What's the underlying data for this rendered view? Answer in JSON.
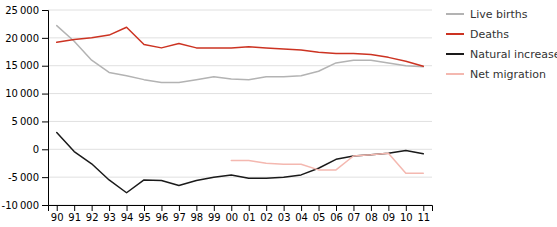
{
  "chart_data": {
    "type": "line",
    "categories": [
      "90",
      "91",
      "92",
      "93",
      "94",
      "95",
      "96",
      "97",
      "98",
      "99",
      "00",
      "01",
      "02",
      "03",
      "04",
      "05",
      "06",
      "07",
      "08",
      "09",
      "10",
      "11"
    ],
    "series": [
      {
        "name": "Live births",
        "color": "#b3b3b3",
        "values": [
          22200,
          19400,
          16000,
          13800,
          13200,
          12500,
          12000,
          12000,
          12500,
          13000,
          12600,
          12500,
          13000,
          13000,
          13200,
          14000,
          15500,
          16000,
          16000,
          15500,
          15000,
          14800
        ]
      },
      {
        "name": "Deaths",
        "color": "#cc3322",
        "values": [
          19200,
          19700,
          20000,
          20500,
          21900,
          18800,
          18200,
          19000,
          18200,
          18200,
          18200,
          18400,
          18200,
          18000,
          17800,
          17400,
          17200,
          17200,
          17000,
          16500,
          15800,
          14900
        ]
      },
      {
        "name": "Natural increase",
        "color": "#1a1a1a",
        "values": [
          3000,
          -400,
          -2600,
          -5500,
          -7800,
          -5500,
          -5600,
          -6500,
          -5600,
          -5000,
          -4600,
          -5200,
          -5200,
          -5000,
          -4600,
          -3400,
          -1800,
          -1200,
          -1000,
          -700,
          -200,
          -800
        ]
      },
      {
        "name": "Net migration",
        "color": "#f4b8b0",
        "values": [
          null,
          null,
          null,
          null,
          null,
          null,
          null,
          null,
          null,
          null,
          -2000,
          -2000,
          -2500,
          -2700,
          -2700,
          -3700,
          -3700,
          -1200,
          -1000,
          -700,
          -4300,
          -4300
        ]
      }
    ],
    "ylim": [
      -10000,
      25000
    ],
    "yticks": [
      {
        "value": -10000,
        "label": "-10 000"
      },
      {
        "value": -5000,
        "label": "-5 000"
      },
      0,
      {
        "value": 5000,
        "label": "5 000"
      },
      {
        "value": 10000,
        "label": "10 000"
      },
      {
        "value": 15000,
        "label": "15 000"
      },
      {
        "value": 20000,
        "label": "20 000"
      },
      {
        "value": 25000,
        "label": "25 000"
      }
    ],
    "grid": true,
    "legend": "right"
  }
}
